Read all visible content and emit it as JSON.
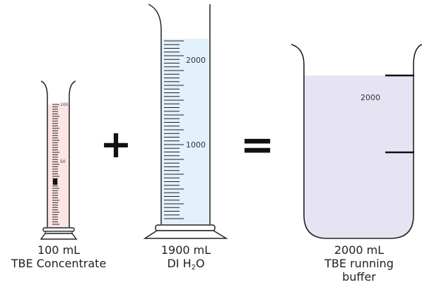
{
  "small_cylinder": {
    "volume": "100 mL",
    "name": "TBE Concentrate",
    "tick_labels": [
      "100",
      "50"
    ],
    "liquid_color": "#fce4e4"
  },
  "large_cylinder": {
    "volume": "1900 mL",
    "name_prefix": "DI H",
    "name_sub": "2",
    "name_suffix": "O",
    "tick_labels": [
      "2000",
      "1000"
    ],
    "liquid_color": "#e2f1fb"
  },
  "beaker": {
    "volume": "2000 mL",
    "name_line1": "TBE running",
    "name_line2": "buffer",
    "mark_label": "2000",
    "liquid_color": "#e6e3f2"
  },
  "operators": {
    "plus": "+",
    "equals": "="
  }
}
